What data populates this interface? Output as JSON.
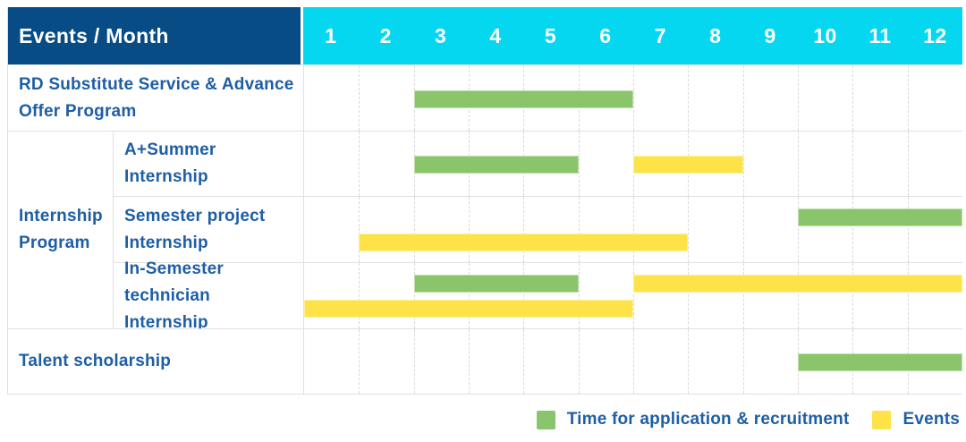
{
  "colors": {
    "header_bg": "#084c85",
    "month_header_bg": "#06d7f0",
    "label_text": "#1e5ea6",
    "application": "#8ac46b",
    "events": "#fde348",
    "gridline": "#d9d9d9"
  },
  "chart_data": {
    "type": "gantt",
    "title": "Events / Month",
    "x_axis_unit": "month",
    "x_ticks": [
      "1",
      "2",
      "3",
      "4",
      "5",
      "6",
      "7",
      "8",
      "9",
      "10",
      "11",
      "12"
    ],
    "x_range": [
      1,
      12
    ],
    "grid": "dashed-vertical-per-month",
    "group_label": "Internship Program",
    "legend_position": "bottom-right",
    "legend": [
      {
        "key": "application",
        "label": "Time for application & recruitment",
        "color": "#8ac46b"
      },
      {
        "key": "events",
        "label": "Events",
        "color": "#fde348"
      }
    ],
    "rows": [
      {
        "label": "RD Substitute Service & Advance Offer Program",
        "group": null,
        "bars": [
          {
            "type": "application",
            "start_month": 3,
            "end_month": 6,
            "line": 0,
            "lines": 1
          }
        ]
      },
      {
        "label": "A+Summer Internship",
        "group": "Internship Program",
        "bars": [
          {
            "type": "application",
            "start_month": 3,
            "end_month": 5,
            "line": 0,
            "lines": 1
          },
          {
            "type": "events",
            "start_month": 7,
            "end_month": 8,
            "line": 0,
            "lines": 1
          }
        ]
      },
      {
        "label": "Semester project Internship",
        "group": "Internship Program",
        "bars": [
          {
            "type": "application",
            "start_month": 10,
            "end_month": 12,
            "line": 0,
            "lines": 2
          },
          {
            "type": "events",
            "start_month": 2,
            "end_month": 7,
            "line": 1,
            "lines": 2
          }
        ]
      },
      {
        "label": "In-Semester technician Internship",
        "group": "Internship Program",
        "bars": [
          {
            "type": "application",
            "start_month": 3,
            "end_month": 5,
            "line": 0,
            "lines": 2
          },
          {
            "type": "events",
            "start_month": 7,
            "end_month": 12,
            "line": 0,
            "lines": 2
          },
          {
            "type": "events",
            "start_month": 1,
            "end_month": 6,
            "line": 1,
            "lines": 2
          }
        ]
      },
      {
        "label": "Talent scholarship",
        "group": null,
        "bars": [
          {
            "type": "application",
            "start_month": 10,
            "end_month": 12,
            "line": 0,
            "lines": 1
          }
        ]
      }
    ]
  }
}
